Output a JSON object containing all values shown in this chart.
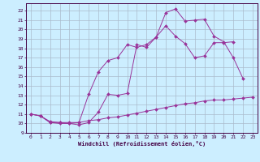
{
  "xlabel": "Windchill (Refroidissement éolien,°C)",
  "background_color": "#cceeff",
  "grid_color": "#aabbcc",
  "line_color": "#993399",
  "xlim": [
    -0.5,
    23.5
  ],
  "ylim": [
    9.0,
    22.8
  ],
  "yticks": [
    9,
    10,
    11,
    12,
    13,
    14,
    15,
    16,
    17,
    18,
    19,
    20,
    21,
    22
  ],
  "xticks": [
    0,
    1,
    2,
    3,
    4,
    5,
    6,
    7,
    8,
    9,
    10,
    11,
    12,
    13,
    14,
    15,
    16,
    17,
    18,
    19,
    20,
    21,
    22,
    23
  ],
  "line1_x": [
    0,
    1,
    2,
    3,
    4,
    5,
    6,
    7,
    8,
    9,
    10,
    11,
    12,
    13,
    14,
    15,
    16,
    17,
    18,
    19,
    20,
    21,
    22
  ],
  "line1_y": [
    11.0,
    10.8,
    10.1,
    10.1,
    10.0,
    9.85,
    10.1,
    11.2,
    13.1,
    13.0,
    13.2,
    18.4,
    18.1,
    19.2,
    21.8,
    22.2,
    20.9,
    21.0,
    21.1,
    19.3,
    18.7,
    17.0,
    14.8
  ],
  "line2_x": [
    0,
    1,
    2,
    3,
    4,
    5,
    6,
    7,
    8,
    9,
    10,
    11,
    12,
    13,
    14,
    15,
    16,
    17,
    18,
    19,
    20,
    21
  ],
  "line2_y": [
    11.0,
    10.8,
    10.1,
    10.0,
    10.0,
    10.1,
    13.1,
    15.5,
    16.7,
    17.0,
    18.4,
    18.1,
    18.4,
    19.2,
    20.4,
    19.3,
    18.5,
    17.0,
    17.2,
    18.6,
    18.6,
    18.7
  ],
  "line3_x": [
    0,
    1,
    2,
    3,
    4,
    5,
    6,
    7,
    8,
    9,
    10,
    11,
    12,
    13,
    14,
    15,
    16,
    17,
    18,
    19,
    20,
    21,
    22,
    23
  ],
  "line3_y": [
    11.0,
    10.8,
    10.2,
    10.1,
    10.1,
    10.1,
    10.3,
    10.4,
    10.6,
    10.7,
    10.9,
    11.1,
    11.3,
    11.5,
    11.7,
    11.9,
    12.1,
    12.2,
    12.4,
    12.5,
    12.5,
    12.6,
    12.7,
    12.8
  ]
}
